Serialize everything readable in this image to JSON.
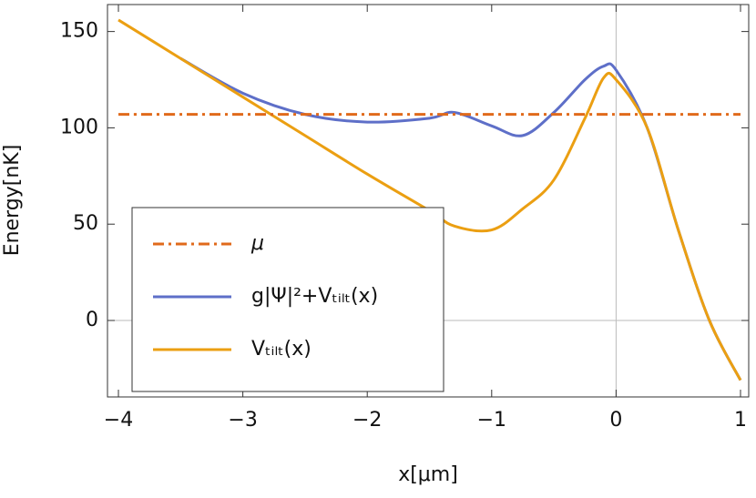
{
  "chart_data": {
    "type": "line",
    "x_label": "x[μm]",
    "y_label": "Energy[nK]",
    "x": [
      -4,
      -3.5,
      -3,
      -2.5,
      -2,
      -1.5,
      -1.3,
      -1,
      -0.75,
      -0.5,
      -0.25,
      -0.1,
      0,
      0.25,
      0.5,
      0.75,
      1
    ],
    "series": [
      {
        "name": "μ",
        "color": "#e06a1b",
        "dash": true,
        "values": [
          107,
          107,
          107,
          107,
          107,
          107,
          107,
          107,
          107,
          107,
          107,
          107,
          107,
          107,
          107,
          107,
          107
        ]
      },
      {
        "name": "g|Ψ|²+Vₜᵢₗₜ(x)",
        "color": "#5e6fc8",
        "dash": false,
        "values": [
          null,
          136,
          118,
          107,
          103,
          105,
          108,
          101,
          96,
          108,
          125,
          132,
          130,
          100,
          47,
          0,
          -31
        ]
      },
      {
        "name": "Vₜᵢₗₜ(x)",
        "color": "#eb9f12",
        "dash": false,
        "values": [
          156,
          136,
          116,
          96,
          76,
          57,
          49,
          47,
          58,
          73,
          105,
          126,
          125,
          100,
          47,
          0,
          -31
        ]
      }
    ],
    "xlim": [
      -4.088,
      1.066
    ],
    "ylim": [
      -39.7,
      164
    ],
    "xticks": [
      {
        "value": -4,
        "label": "−4"
      },
      {
        "value": -3,
        "label": "−3"
      },
      {
        "value": -2,
        "label": "−2"
      },
      {
        "value": -1,
        "label": "−1"
      },
      0,
      1
    ],
    "yticks": [
      0,
      50,
      100,
      150
    ],
    "legend": "lower-left"
  }
}
